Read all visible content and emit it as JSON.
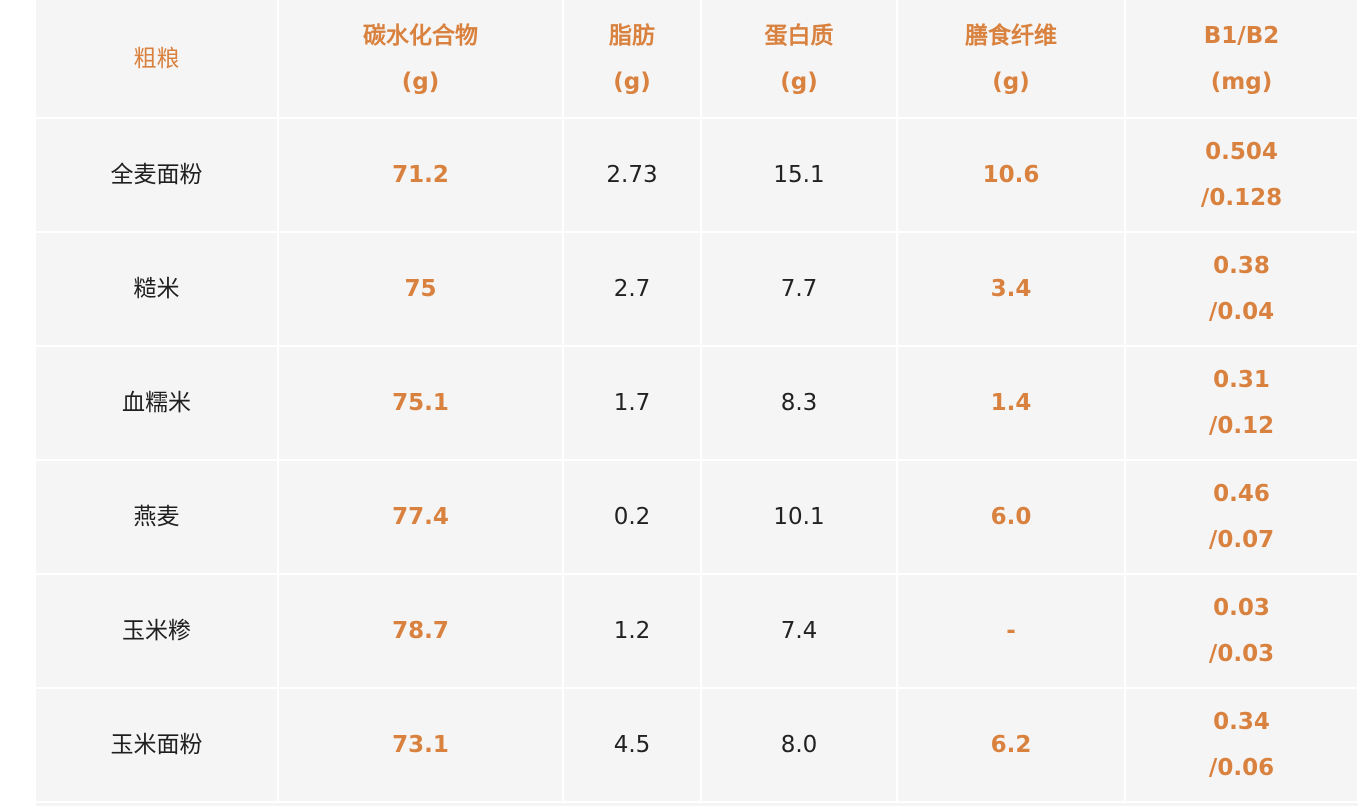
{
  "table": {
    "headers": [
      {
        "line1": "粗粮",
        "line2": ""
      },
      {
        "line1": "碳水化合物",
        "line2": "(g)"
      },
      {
        "line1": "脂肪",
        "line2": "(g)"
      },
      {
        "line1": "蛋白质",
        "line2": "(g)"
      },
      {
        "line1": "膳食纤维",
        "line2": "(g)"
      },
      {
        "line1": "B1/B2",
        "line2": "(mg)"
      }
    ],
    "rows": [
      {
        "name": "全麦面粉",
        "carbs": "71.2",
        "fat": "2.73",
        "protein": "15.1",
        "fiber": "10.6",
        "b1": "0.504",
        "b2": "/0.128"
      },
      {
        "name": "糙米",
        "carbs": "75",
        "fat": "2.7",
        "protein": "7.7",
        "fiber": "3.4",
        "b1": "0.38",
        "b2": "/0.04"
      },
      {
        "name": "血糯米",
        "carbs": "75.1",
        "fat": "1.7",
        "protein": "8.3",
        "fiber": "1.4",
        "b1": "0.31",
        "b2": "/0.12"
      },
      {
        "name": "燕麦",
        "carbs": "77.4",
        "fat": "0.2",
        "protein": "10.1",
        "fiber": "6.0",
        "b1": "0.46",
        "b2": "/0.07"
      },
      {
        "name": "玉米糁",
        "carbs": "78.7",
        "fat": "1.2",
        "protein": "7.4",
        "fiber": "-",
        "b1": "0.03",
        "b2": "/0.03"
      },
      {
        "name": "玉米面粉",
        "carbs": "73.1",
        "fat": "4.5",
        "protein": "8.0",
        "fiber": "6.2",
        "b1": "0.34",
        "b2": "/0.06"
      }
    ]
  },
  "colors": {
    "accent": "#d9823f",
    "background": "#f6f5f5",
    "text": "#222222"
  }
}
